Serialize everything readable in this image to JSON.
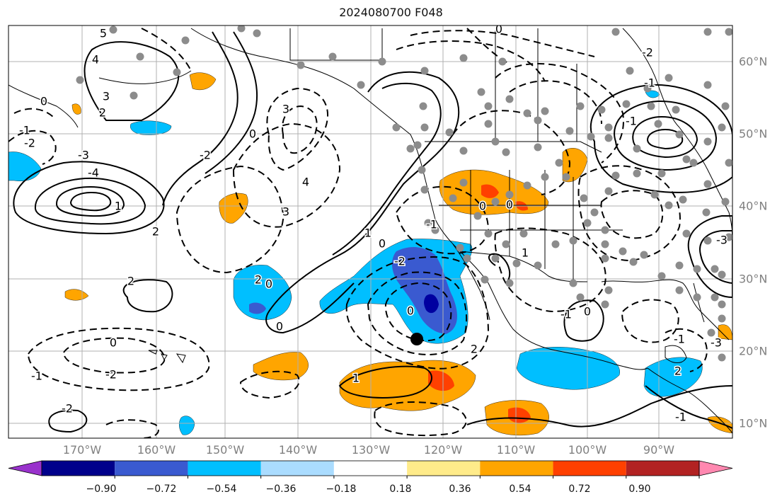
{
  "title": "2024080700 F048",
  "colors": {
    "land_line": "#000000",
    "grid": "#b0b0b0",
    "station": "#8c8c8c",
    "marker": "#000000",
    "neg_light": "#00bfff",
    "neg_mid": "#3a5ad0",
    "neg_dark": "#0000a0",
    "pos_light": "#ffa500",
    "pos_mid": "#ff4000",
    "pos_dark": "#c82020"
  },
  "lon_labels": [
    "170°W",
    "160°W",
    "150°W",
    "140°W",
    "130°W",
    "120°W",
    "110°W",
    "100°W",
    "90°W"
  ],
  "lat_labels": [
    "60°N",
    "50°N",
    "40°N",
    "30°N",
    "20°N",
    "10°N"
  ],
  "colorbar": {
    "colors": [
      "#9932cc",
      "#00008b",
      "#3a5ad0",
      "#00bfff",
      "#aadcff",
      "#ffffff",
      "#ffeb8a",
      "#ffa500",
      "#ff4000",
      "#b22222",
      "#ff88b0"
    ],
    "ticks": [
      "−0.90",
      "−0.72",
      "−0.54",
      "−0.36",
      "−0.18",
      "0.18",
      "0.36",
      "0.54",
      "0.72",
      "0.90"
    ]
  },
  "contour_labels": [
    "5",
    "4",
    "3",
    "2",
    "0",
    "-1",
    "-2",
    "-3",
    "-4",
    "1",
    "2",
    "4",
    "3",
    "0",
    "2",
    "3",
    "0",
    "-2",
    "2",
    "0",
    "-2",
    "-1",
    "-2",
    "1",
    "0",
    "0",
    "1",
    "-2",
    "0",
    "-1",
    "0",
    "-2",
    "-1",
    "-1",
    "0",
    "0",
    "1",
    "-1",
    "0",
    "2",
    "-3",
    "-1",
    "2",
    "-1",
    "-3"
  ]
}
